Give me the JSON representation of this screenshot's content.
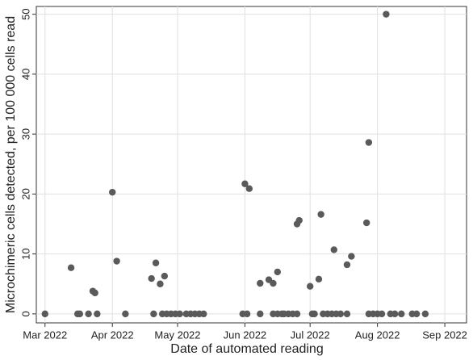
{
  "chart_data": {
    "type": "scatter",
    "x_label": "Date of automated reading",
    "y_label": "Microchimeric cells detected, per 100 000 cells read",
    "x": [
      0,
      12,
      15,
      16,
      20,
      22,
      23,
      24,
      31,
      33,
      37,
      49,
      51,
      50,
      53,
      55,
      54,
      56,
      58,
      60,
      62,
      65,
      67,
      69,
      71,
      73,
      91,
      93,
      92,
      94,
      99,
      99,
      103,
      105,
      107,
      105,
      107,
      109,
      110,
      112,
      114,
      116,
      116,
      117,
      122,
      123,
      124,
      126,
      127,
      128,
      130,
      132,
      134,
      136,
      133,
      139,
      141,
      139,
      148,
      149,
      149,
      151,
      153,
      155,
      157,
      159,
      161,
      164,
      169,
      171,
      175
    ],
    "values": [
      0,
      7.7,
      0,
      0,
      0,
      3.8,
      3.5,
      0,
      20.3,
      8.8,
      0,
      5.9,
      8.5,
      0,
      5,
      6.3,
      0,
      0,
      0,
      0,
      0,
      0,
      0,
      0,
      0,
      0,
      0,
      0,
      21.7,
      20.9,
      0,
      5.1,
      5.7,
      5.1,
      7,
      0,
      0,
      0,
      0,
      0,
      0,
      0,
      15,
      15.6,
      4.6,
      0,
      0,
      5.8,
      16.6,
      0,
      0,
      0,
      0,
      0,
      10.7,
      8.2,
      9.6,
      0,
      15.2,
      28.6,
      0,
      0,
      0,
      0,
      50,
      0,
      0,
      0,
      0,
      0,
      0
    ],
    "color": "#5a5a5a",
    "xlim": [
      -4,
      194
    ],
    "xticks": [
      {
        "value": 0,
        "label": "Mar 2022"
      },
      {
        "value": 31,
        "label": "Apr 2022"
      },
      {
        "value": 61,
        "label": "May 2022"
      },
      {
        "value": 92,
        "label": "Jun 2022"
      },
      {
        "value": 122,
        "label": "Jul 2022"
      },
      {
        "value": 153,
        "label": "Aug 2022"
      },
      {
        "value": 184,
        "label": "Sep 2022"
      }
    ],
    "ylim": [
      -1.5,
      51.3
    ],
    "yticks": [
      0,
      10,
      20,
      30,
      40,
      50
    ],
    "grid": true
  }
}
